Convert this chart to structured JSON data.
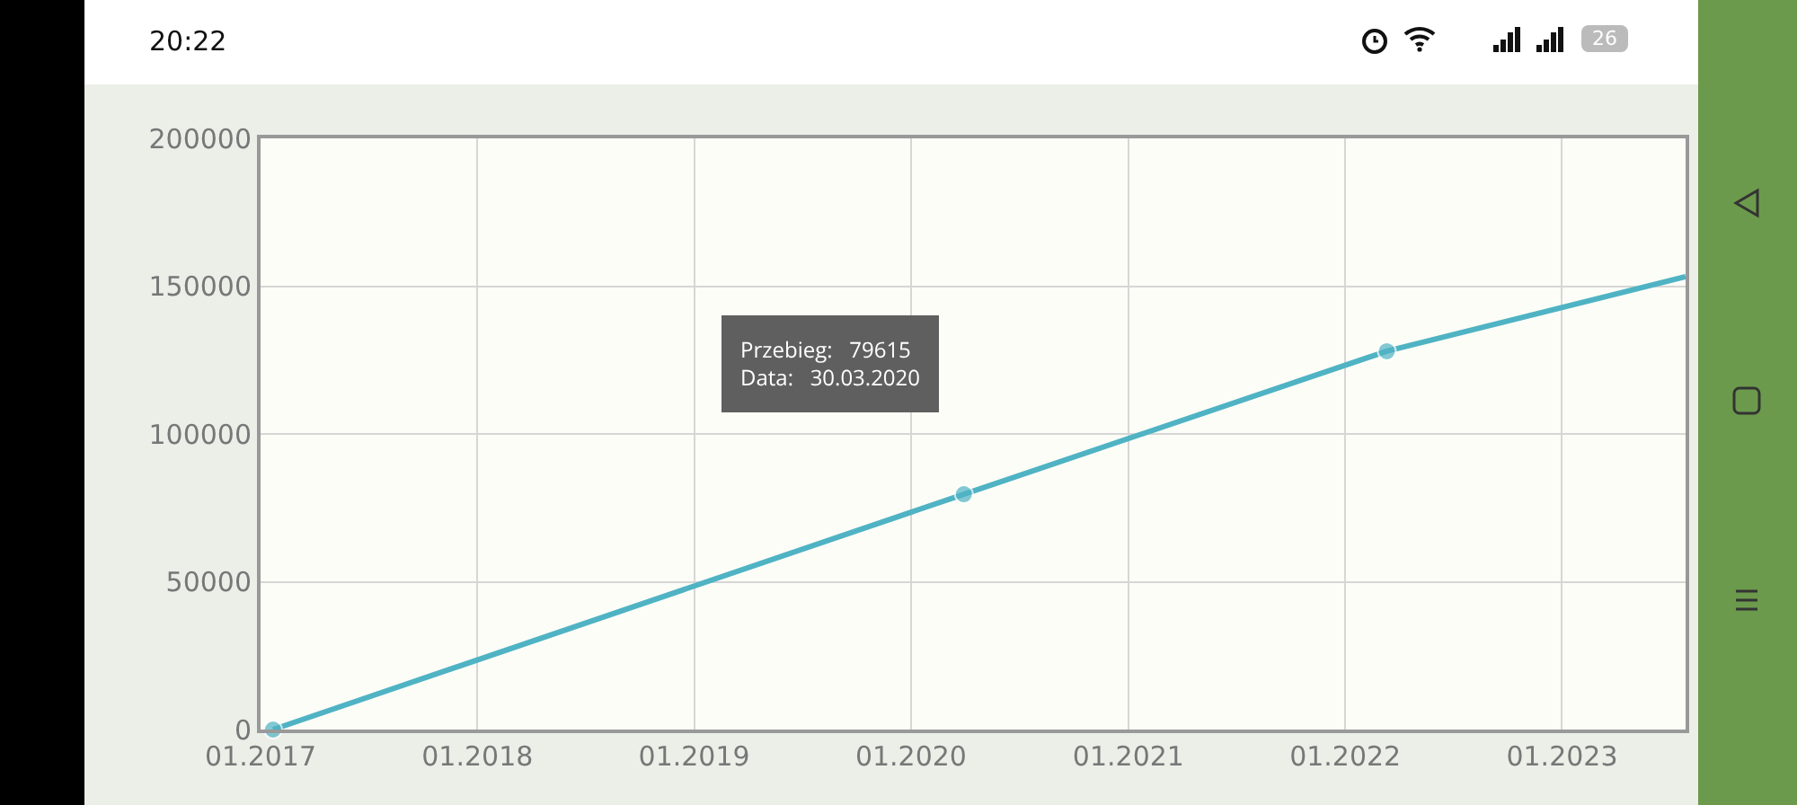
{
  "chart_data": {
    "type": "line",
    "x": [
      "2017-01-22",
      "2020-03-30",
      "2022-03-12",
      "2023-07-28"
    ],
    "series": [
      {
        "color": "#4fb3c4",
        "values": [
          0,
          79615,
          128000,
          153200
        ]
      }
    ],
    "xlim": [
      "2017-01-01",
      "2023-07-28"
    ],
    "xticks": [
      {
        "value": "2017-01-01",
        "label": "01.2017"
      },
      {
        "value": "2018-01-01",
        "label": "01.2018"
      },
      {
        "value": "2019-01-01",
        "label": "01.2019"
      },
      {
        "value": "2020-01-01",
        "label": "01.2020"
      },
      {
        "value": "2021-01-01",
        "label": "01.2021"
      },
      {
        "value": "2022-01-01",
        "label": "01.2022"
      },
      {
        "value": "2023-01-01",
        "label": "01.2023"
      }
    ],
    "ylim": [
      0,
      200000
    ],
    "yticks": [
      0,
      50000,
      100000,
      150000,
      200000
    ],
    "grid": true,
    "marker": "circle",
    "line_style": "solid",
    "annotations": [
      "20:22",
      "26",
      "Przebieg:   79615\nData:   30.03.2020"
    ]
  }
}
